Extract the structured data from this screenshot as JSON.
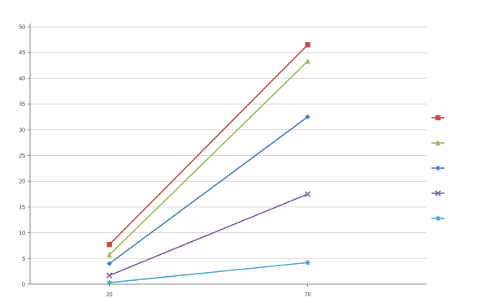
{
  "chart_data": {
    "type": "line",
    "title": "",
    "xlabel": "",
    "ylabel": "",
    "x": [
      20,
      70
    ],
    "x_tick_labels": [
      "20",
      "70"
    ],
    "xlim": [
      0,
      100
    ],
    "ylim": [
      0,
      50
    ],
    "y_ticks": [
      0,
      5,
      10,
      15,
      20,
      25,
      30,
      35,
      40,
      45,
      50
    ],
    "grid": true,
    "legend_position": "right",
    "series": [
      {
        "name": "",
        "values": [
          7.7,
          46.5
        ],
        "color": "#c0504d",
        "marker": "square"
      },
      {
        "name": "",
        "values": [
          5.7,
          43.3
        ],
        "color": "#9bbb59",
        "marker": "triangle"
      },
      {
        "name": "",
        "values": [
          4.0,
          32.5
        ],
        "color": "#4f81bd",
        "marker": "diamond"
      },
      {
        "name": "",
        "values": [
          1.7,
          17.5
        ],
        "color": "#8064a2",
        "marker": "cross"
      },
      {
        "name": "",
        "values": [
          0.3,
          4.2
        ],
        "color": "#4bacc6",
        "marker": "star"
      }
    ]
  }
}
